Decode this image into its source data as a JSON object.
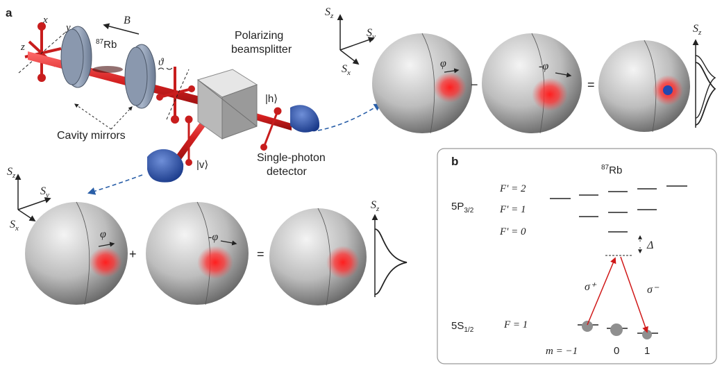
{
  "panel_a": {
    "label": "a",
    "axis_x": "x",
    "axis_y": "y",
    "axis_z": "z",
    "field": "B",
    "atom": "87Rb",
    "atom_sup": "87",
    "atom_main": "Rb",
    "angle": "ϑ",
    "pbs_line1": "Polarizing",
    "pbs_line2": "beamsplitter",
    "port_h": "|h⟩",
    "port_v": "|v⟩",
    "mirrors": "Cavity mirrors",
    "detector_line1": "Single-photon",
    "detector_line2": "detector",
    "spin_axes": {
      "z": "S",
      "z_sub": "z",
      "y": "S",
      "y_sub": "y",
      "x": "S",
      "x_sub": "x"
    },
    "top_row": {
      "phi1": "φ",
      "op1": "−",
      "phi2": "-φ",
      "op2": "=",
      "dist": "S",
      "dist_sub": "z"
    },
    "bottom_row": {
      "phi1": "φ",
      "op1": "+",
      "phi2": "-φ",
      "op2": "=",
      "dist": "S",
      "dist_sub": "z"
    }
  },
  "panel_b": {
    "label": "b",
    "atom_sup": "87",
    "atom_main": "Rb",
    "excited_state_main": "5P",
    "excited_state_sub": "3/2",
    "ground_state_main": "5S",
    "ground_state_sub": "1/2",
    "f2": "F' = 2",
    "f1": "F' = 1",
    "f0": "F' = 0",
    "fg": "F = 1",
    "detuning": "Δ",
    "sigma_plus": "σ⁺",
    "sigma_minus": "σ⁻",
    "m_label": "m = −1",
    "m0": "0",
    "m1": "1"
  }
}
